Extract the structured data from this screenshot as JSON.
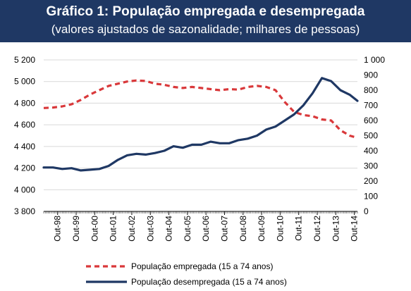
{
  "header": {
    "title": "Gráfico 1: População empregada e desempregada",
    "subtitle": "(valores ajustados de sazonalidade; milhares de pessoas)"
  },
  "colors": {
    "header_bg": "#1f3864",
    "employed": "#d9383a",
    "unemployed": "#1f3864",
    "grid": "#d9d9d9"
  },
  "chart_data": {
    "type": "line",
    "title": "Gráfico 1: População empregada e desempregada",
    "subtitle": "(valores ajustados de sazonalidade; milhares de pessoas)",
    "x_tick_labels": [
      "Out-98",
      "Out-99",
      "Out-00",
      "Out-01",
      "Out-02",
      "Out-03",
      "Out-04",
      "Out-05",
      "Out-06",
      "Out-07",
      "Out-08",
      "Out-09",
      "Out-10",
      "Out-11",
      "Out-12",
      "Out-13",
      "Out-14"
    ],
    "y_left": {
      "ylim": [
        3800,
        5200
      ],
      "ticks": [
        "3 800",
        "4 000",
        "4 200",
        "4 400",
        "4 600",
        "4 800",
        "5 000",
        "5 200"
      ]
    },
    "y_right": {
      "ylim": [
        0,
        1000
      ],
      "ticks": [
        "0",
        "100",
        "200",
        "300",
        "400",
        "500",
        "600",
        "700",
        "800",
        "900",
        "1 000"
      ]
    },
    "grid": "horizontal",
    "legend_position": "bottom",
    "series": [
      {
        "name": "População empregada (15 a 74 anos)",
        "axis": "left",
        "style": "dashed",
        "color": "#d9383a",
        "x": [
          "1998-01",
          "1998-07",
          "1999-01",
          "1999-07",
          "2000-01",
          "2000-07",
          "2001-01",
          "2001-07",
          "2002-01",
          "2002-07",
          "2003-01",
          "2003-07",
          "2004-01",
          "2004-07",
          "2005-01",
          "2005-07",
          "2006-01",
          "2006-07",
          "2007-01",
          "2007-07",
          "2008-01",
          "2008-07",
          "2009-01",
          "2009-07",
          "2010-01",
          "2010-07",
          "2011-01",
          "2011-07",
          "2012-01",
          "2012-07",
          "2013-01",
          "2013-07",
          "2014-01",
          "2014-07",
          "2014-12"
        ],
        "values": [
          4755,
          4760,
          4770,
          4790,
          4830,
          4880,
          4920,
          4960,
          4980,
          5000,
          5010,
          5005,
          4980,
          4970,
          4950,
          4940,
          4950,
          4940,
          4930,
          4920,
          4930,
          4925,
          4950,
          4960,
          4950,
          4920,
          4810,
          4720,
          4690,
          4680,
          4650,
          4640,
          4550,
          4500,
          4480
        ]
      },
      {
        "name": "População desempregada (15 a 74 anos)",
        "axis": "right",
        "style": "solid",
        "color": "#1f3864",
        "x": [
          "1998-01",
          "1998-07",
          "1999-01",
          "1999-07",
          "2000-01",
          "2000-07",
          "2001-01",
          "2001-07",
          "2002-01",
          "2002-07",
          "2003-01",
          "2003-07",
          "2004-01",
          "2004-07",
          "2005-01",
          "2005-07",
          "2006-01",
          "2006-07",
          "2007-01",
          "2007-07",
          "2008-01",
          "2008-07",
          "2009-01",
          "2009-07",
          "2010-01",
          "2010-07",
          "2011-01",
          "2011-07",
          "2012-01",
          "2012-07",
          "2013-01",
          "2013-07",
          "2014-01",
          "2014-07",
          "2014-12"
        ],
        "values": [
          290,
          290,
          280,
          285,
          270,
          275,
          280,
          300,
          340,
          370,
          380,
          375,
          385,
          400,
          430,
          420,
          440,
          440,
          460,
          450,
          450,
          470,
          480,
          500,
          540,
          560,
          600,
          640,
          700,
          780,
          880,
          860,
          800,
          770,
          730
        ]
      }
    ]
  }
}
